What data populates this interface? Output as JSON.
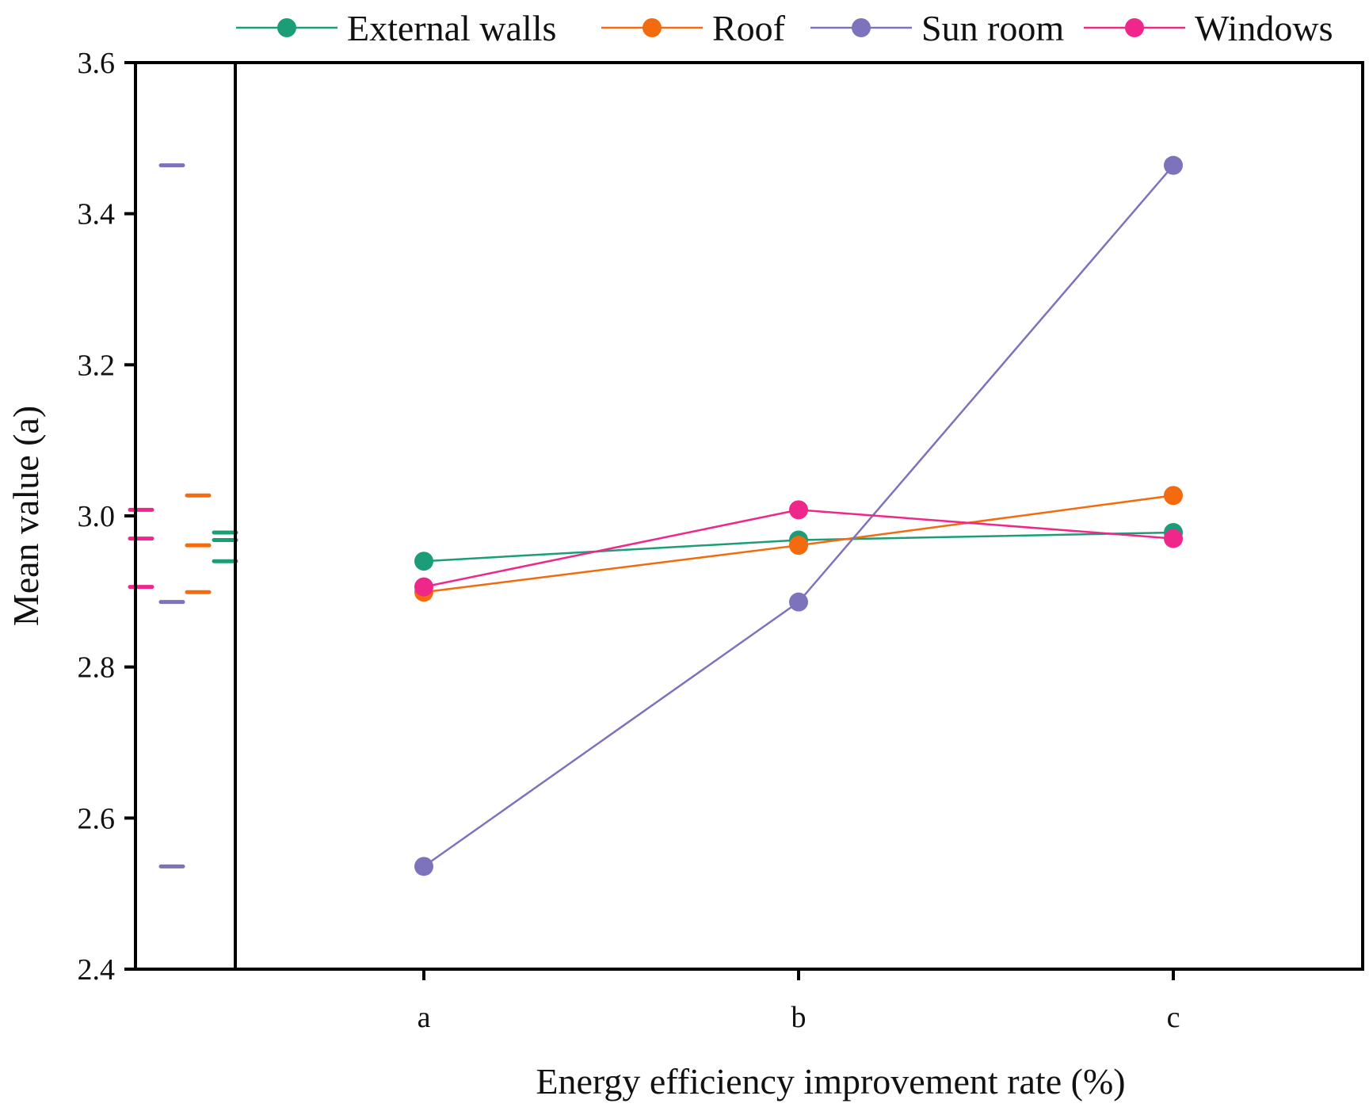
{
  "chart_data": {
    "type": "line",
    "title": "",
    "xlabel": "Energy efficiency improvement rate (%)",
    "ylabel": "Mean value (a)",
    "categories": [
      "a",
      "b",
      "c"
    ],
    "ylim": [
      2.4,
      3.6
    ],
    "yticks": [
      2.4,
      2.6,
      2.8,
      3.0,
      3.2,
      3.4,
      3.6
    ],
    "ytick_labels": [
      "2.4",
      "2.6",
      "2.8",
      "3.0",
      "3.2",
      "3.4",
      "3.6"
    ],
    "legend_position": "top",
    "grid": false,
    "series": [
      {
        "name": "External walls",
        "color": "#1b9e77",
        "values": [
          2.94,
          2.968,
          2.978
        ]
      },
      {
        "name": "Roof",
        "color": "#f46a0f",
        "values": [
          2.899,
          2.961,
          3.027
        ]
      },
      {
        "name": "Sun room",
        "color": "#7d73bd",
        "values": [
          2.536,
          2.886,
          3.464
        ]
      },
      {
        "name": "Windows",
        "color": "#f0278a",
        "values": [
          2.906,
          3.008,
          2.97
        ]
      }
    ]
  }
}
